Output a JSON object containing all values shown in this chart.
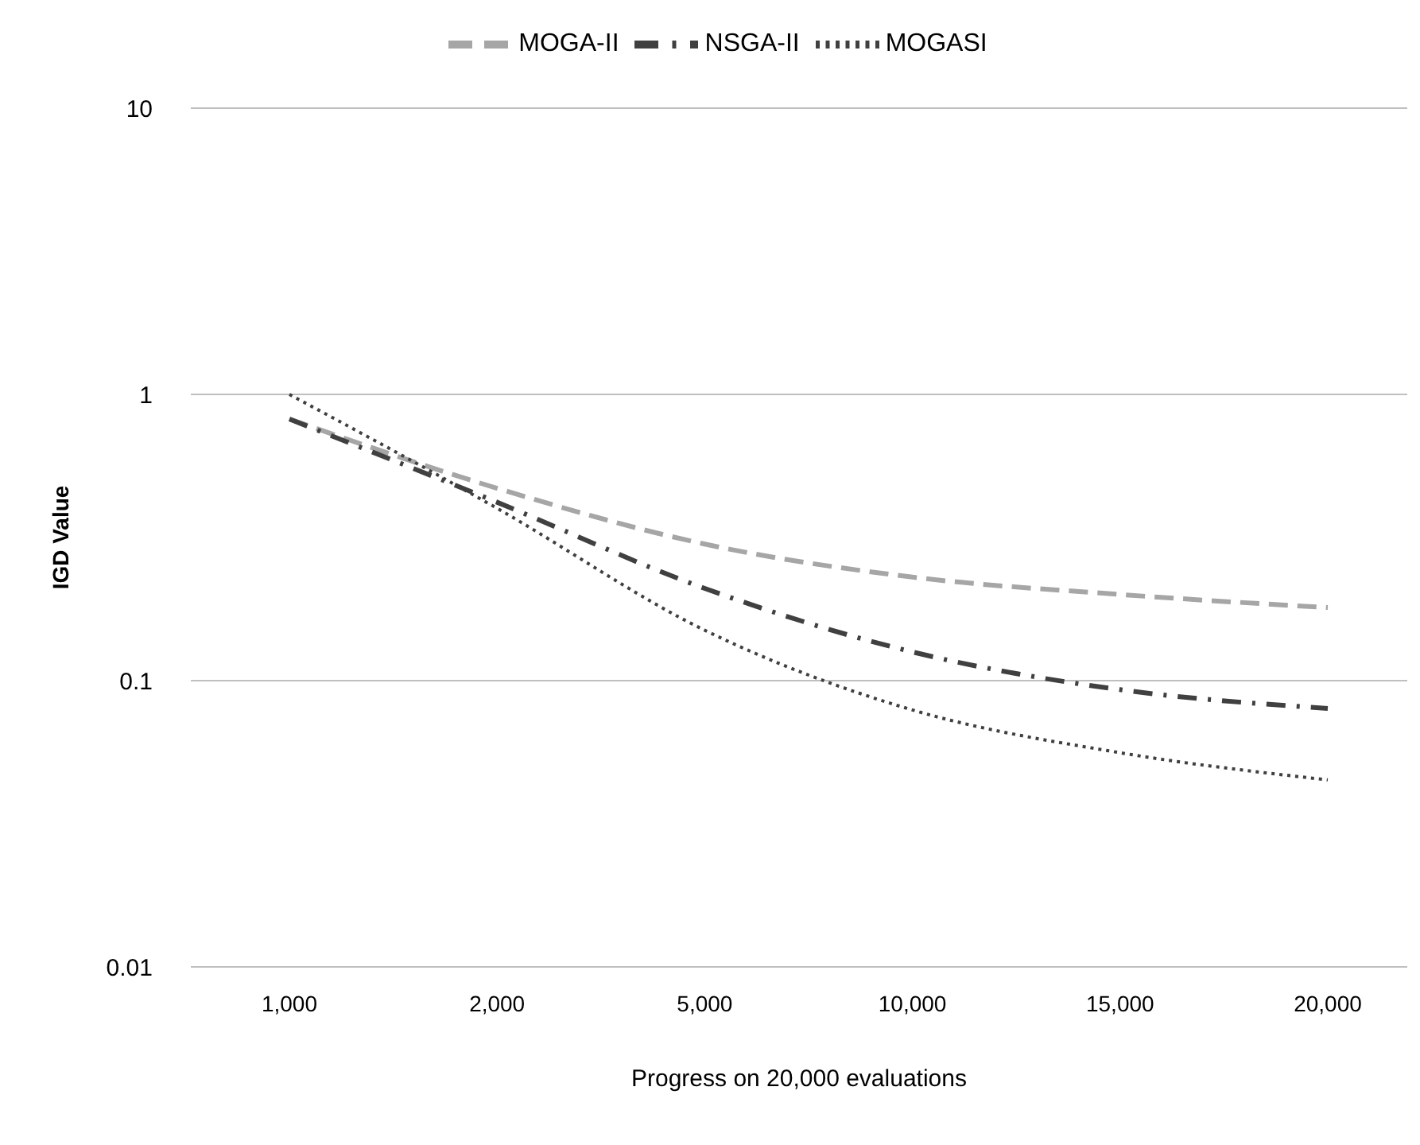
{
  "chart_data": {
    "type": "line",
    "xlabel": "Progress on 20,000 evaluations",
    "ylabel": "IGD Value",
    "categories": [
      "1,000",
      "2,000",
      "5,000",
      "10,000",
      "15,000",
      "20,000"
    ],
    "series": [
      {
        "name": "MOGA-II",
        "color": "#a6a6a6",
        "line_style": "dashed",
        "values": [
          0.82,
          0.47,
          0.3,
          0.23,
          0.2,
          0.18
        ]
      },
      {
        "name": "NSGA-II",
        "color": "#404040",
        "line_style": "dashdot",
        "values": [
          0.82,
          0.42,
          0.21,
          0.126,
          0.093,
          0.08
        ]
      },
      {
        "name": "MOGASI",
        "color": "#404040",
        "line_style": "dotted",
        "values": [
          1.0,
          0.4,
          0.15,
          0.079,
          0.056,
          0.045
        ]
      }
    ],
    "log": "y",
    "ylim": [
      0.01,
      10
    ],
    "yticks": [
      0.01,
      0.1,
      1,
      10
    ],
    "grid": "y",
    "legend": "top",
    "marker": "none"
  }
}
